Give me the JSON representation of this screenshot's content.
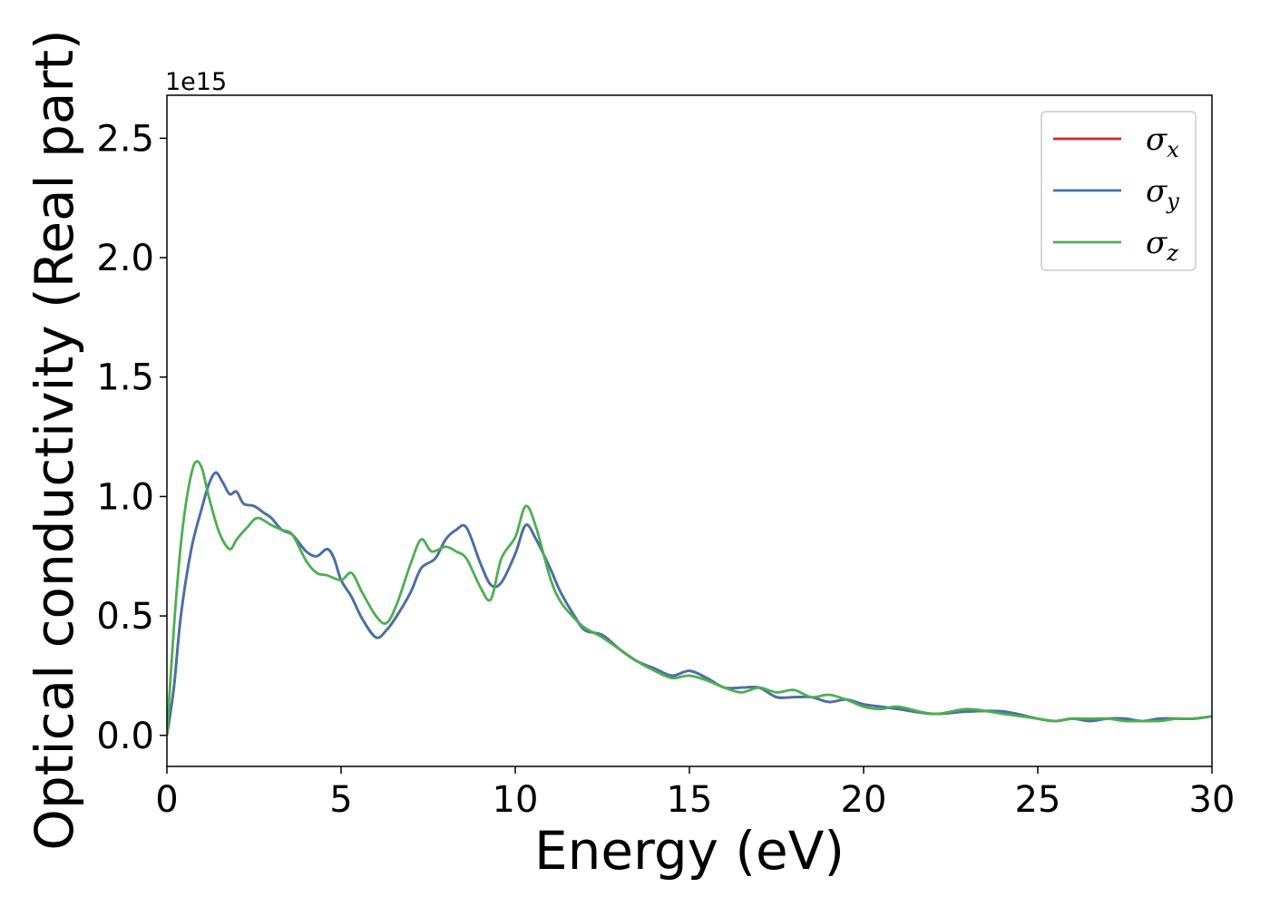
{
  "chart_data": {
    "type": "line",
    "xlabel": "Energy (eV)",
    "ylabel": "Optical conductivity (Real part)",
    "y_offset_text": "1e15",
    "xlim": [
      0,
      30
    ],
    "ylim": [
      -0.13,
      2.68
    ],
    "x_ticks": [
      0,
      5,
      10,
      15,
      20,
      25,
      30
    ],
    "x_tick_labels": [
      "0",
      "5",
      "10",
      "15",
      "20",
      "25",
      "30"
    ],
    "y_ticks": [
      0.0,
      0.5,
      1.0,
      1.5,
      2.0,
      2.5
    ],
    "y_tick_labels": [
      "0.0",
      "0.5",
      "1.0",
      "1.5",
      "2.0",
      "2.5"
    ],
    "grid": false,
    "legend_position": "top-right",
    "legend_symbol": "σ",
    "series": [
      {
        "name": "σx",
        "symbol": "σ",
        "subscript": "x",
        "color": "#d62728",
        "x": [
          0,
          0.2,
          0.4,
          0.7,
          1.0,
          1.2,
          1.4,
          1.6,
          1.8,
          2.0,
          2.2,
          2.5,
          2.8,
          3.0,
          3.3,
          3.6,
          4.0,
          4.3,
          4.6,
          4.8,
          5.0,
          5.3,
          5.6,
          6.0,
          6.3,
          6.6,
          7.0,
          7.3,
          7.7,
          8.0,
          8.3,
          8.6,
          9.0,
          9.3,
          9.6,
          10.0,
          10.3,
          10.6,
          11.0,
          11.3,
          11.7,
          12.0,
          12.5,
          13.0,
          13.5,
          14.0,
          14.5,
          15.0,
          15.5,
          16.0,
          16.5,
          17.0,
          17.5,
          18.0,
          18.5,
          19.0,
          19.5,
          20.0,
          20.5,
          21.0,
          22.0,
          23.0,
          24.0,
          25.0,
          25.5,
          26.0,
          26.5,
          27.0,
          27.5,
          28.0,
          28.5,
          29.0,
          29.5,
          30.0
        ],
        "y": [
          0.0,
          0.2,
          0.5,
          0.78,
          0.95,
          1.05,
          1.1,
          1.06,
          1.01,
          1.02,
          0.97,
          0.96,
          0.93,
          0.91,
          0.86,
          0.84,
          0.77,
          0.75,
          0.78,
          0.74,
          0.65,
          0.58,
          0.49,
          0.41,
          0.44,
          0.5,
          0.6,
          0.7,
          0.74,
          0.82,
          0.86,
          0.87,
          0.72,
          0.63,
          0.64,
          0.76,
          0.88,
          0.82,
          0.7,
          0.6,
          0.5,
          0.44,
          0.42,
          0.36,
          0.31,
          0.28,
          0.25,
          0.27,
          0.24,
          0.2,
          0.2,
          0.2,
          0.16,
          0.16,
          0.16,
          0.14,
          0.15,
          0.13,
          0.12,
          0.11,
          0.09,
          0.1,
          0.1,
          0.07,
          0.06,
          0.07,
          0.06,
          0.07,
          0.07,
          0.06,
          0.07,
          0.07,
          0.07,
          0.08
        ]
      },
      {
        "name": "σy",
        "symbol": "σ",
        "subscript": "y",
        "color": "#4472a8",
        "x": [
          0,
          0.2,
          0.4,
          0.7,
          1.0,
          1.2,
          1.4,
          1.6,
          1.8,
          2.0,
          2.2,
          2.5,
          2.8,
          3.0,
          3.3,
          3.6,
          4.0,
          4.3,
          4.6,
          4.8,
          5.0,
          5.3,
          5.6,
          6.0,
          6.3,
          6.6,
          7.0,
          7.3,
          7.7,
          8.0,
          8.3,
          8.6,
          9.0,
          9.3,
          9.6,
          10.0,
          10.3,
          10.6,
          11.0,
          11.3,
          11.7,
          12.0,
          12.5,
          13.0,
          13.5,
          14.0,
          14.5,
          15.0,
          15.5,
          16.0,
          16.5,
          17.0,
          17.5,
          18.0,
          18.5,
          19.0,
          19.5,
          20.0,
          20.5,
          21.0,
          22.0,
          23.0,
          24.0,
          25.0,
          25.5,
          26.0,
          26.5,
          27.0,
          27.5,
          28.0,
          28.5,
          29.0,
          29.5,
          30.0
        ],
        "y": [
          0.0,
          0.2,
          0.5,
          0.78,
          0.95,
          1.05,
          1.1,
          1.06,
          1.01,
          1.02,
          0.97,
          0.96,
          0.93,
          0.91,
          0.86,
          0.84,
          0.77,
          0.75,
          0.78,
          0.74,
          0.65,
          0.58,
          0.49,
          0.41,
          0.44,
          0.5,
          0.6,
          0.7,
          0.74,
          0.82,
          0.86,
          0.87,
          0.72,
          0.63,
          0.64,
          0.76,
          0.88,
          0.82,
          0.7,
          0.6,
          0.5,
          0.44,
          0.42,
          0.36,
          0.31,
          0.28,
          0.25,
          0.27,
          0.24,
          0.2,
          0.2,
          0.2,
          0.16,
          0.16,
          0.16,
          0.14,
          0.15,
          0.13,
          0.12,
          0.11,
          0.09,
          0.1,
          0.1,
          0.07,
          0.06,
          0.07,
          0.06,
          0.07,
          0.07,
          0.06,
          0.07,
          0.07,
          0.07,
          0.08
        ]
      },
      {
        "name": "σz",
        "symbol": "σ",
        "subscript": "z",
        "color": "#4caf50",
        "x": [
          0,
          0.2,
          0.4,
          0.6,
          0.8,
          1.0,
          1.2,
          1.5,
          1.8,
          2.0,
          2.3,
          2.6,
          3.0,
          3.3,
          3.6,
          4.0,
          4.3,
          4.6,
          5.0,
          5.3,
          5.6,
          6.0,
          6.3,
          6.6,
          7.0,
          7.3,
          7.6,
          8.0,
          8.3,
          8.6,
          9.0,
          9.3,
          9.6,
          10.0,
          10.3,
          10.6,
          11.0,
          11.3,
          11.7,
          12.0,
          12.5,
          13.0,
          13.5,
          14.0,
          14.5,
          15.0,
          15.5,
          16.0,
          16.5,
          17.0,
          17.5,
          18.0,
          18.5,
          19.0,
          19.5,
          20.0,
          20.5,
          21.0,
          22.0,
          23.0,
          24.0,
          25.0,
          25.5,
          26.0,
          26.5,
          27.0,
          27.5,
          28.0,
          28.5,
          29.0,
          29.5,
          30.0
        ],
        "y": [
          0.0,
          0.45,
          0.8,
          1.02,
          1.14,
          1.12,
          1.0,
          0.85,
          0.78,
          0.82,
          0.87,
          0.91,
          0.88,
          0.86,
          0.84,
          0.73,
          0.68,
          0.67,
          0.65,
          0.68,
          0.6,
          0.5,
          0.47,
          0.55,
          0.72,
          0.82,
          0.77,
          0.79,
          0.77,
          0.74,
          0.62,
          0.57,
          0.74,
          0.83,
          0.96,
          0.87,
          0.66,
          0.56,
          0.49,
          0.45,
          0.41,
          0.36,
          0.31,
          0.27,
          0.24,
          0.25,
          0.23,
          0.2,
          0.18,
          0.2,
          0.18,
          0.19,
          0.16,
          0.17,
          0.15,
          0.12,
          0.11,
          0.12,
          0.09,
          0.11,
          0.09,
          0.07,
          0.06,
          0.07,
          0.07,
          0.07,
          0.06,
          0.06,
          0.06,
          0.07,
          0.07,
          0.08
        ]
      }
    ]
  }
}
